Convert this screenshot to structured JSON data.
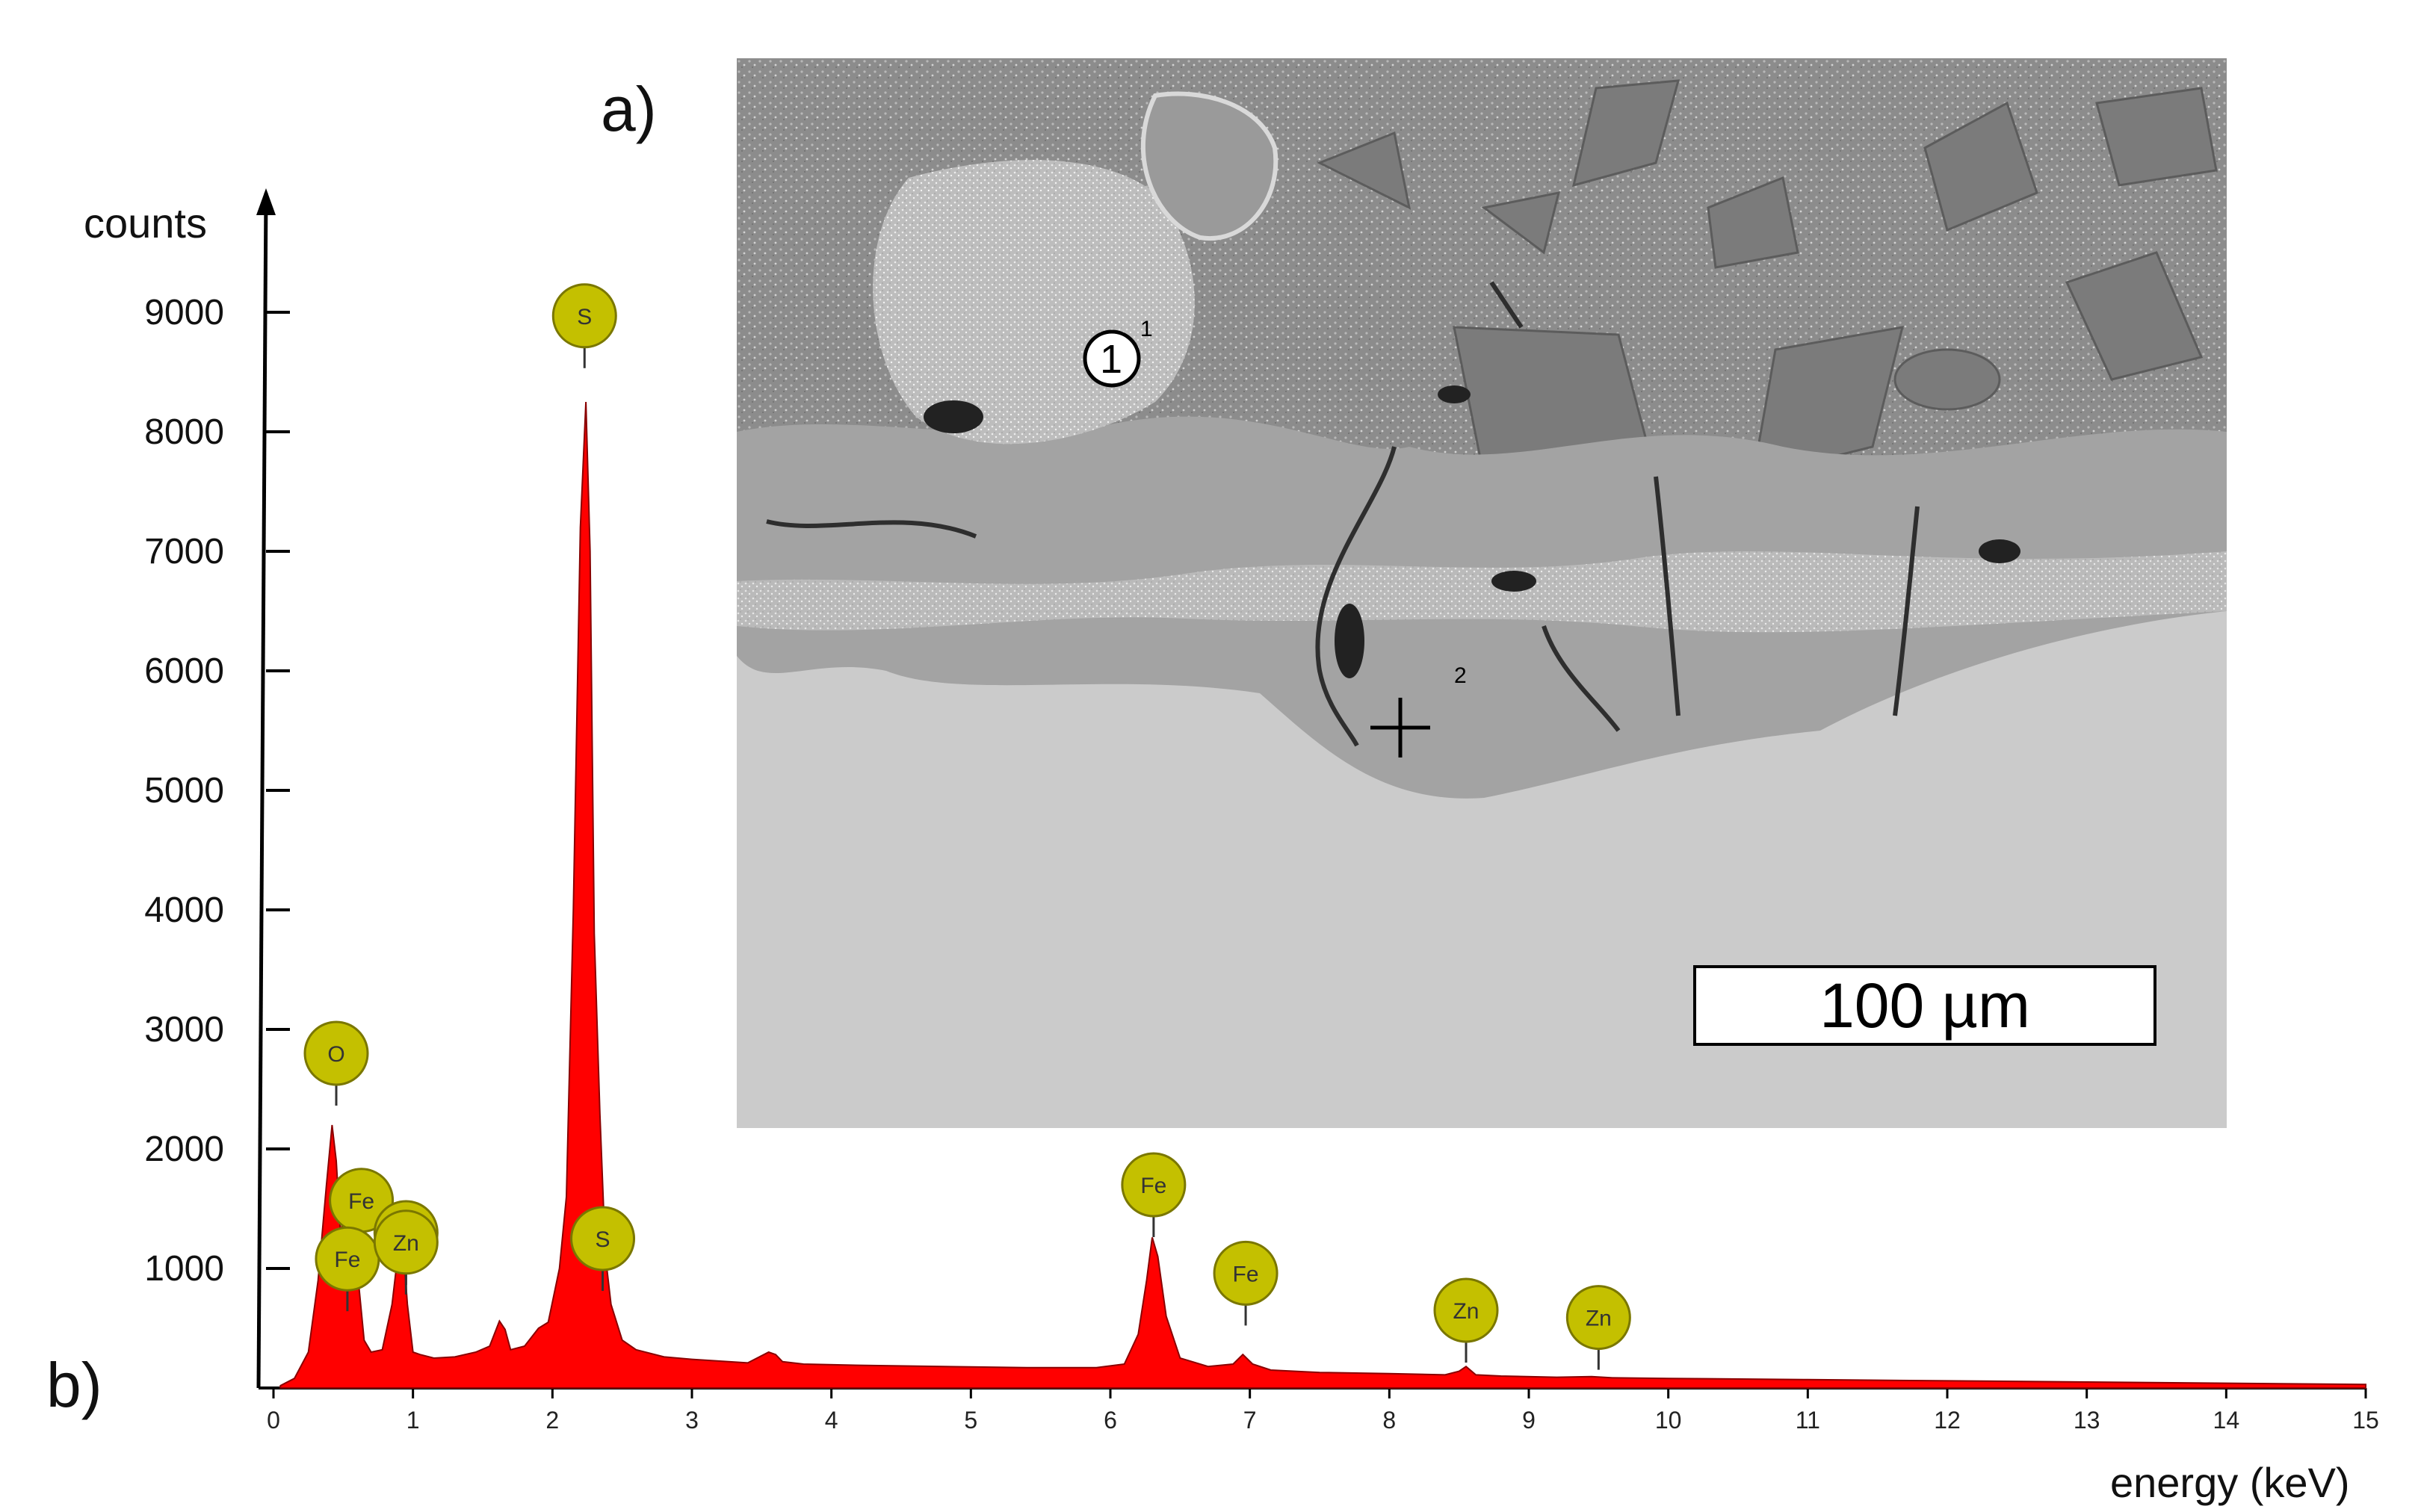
{
  "panels": {
    "a": "a)",
    "b": "b)"
  },
  "sem": {
    "scale_bar": "100 µm",
    "points": [
      {
        "number": "1",
        "superscript": "1",
        "marker": "circle"
      },
      {
        "number": "",
        "superscript": "2",
        "marker": "cross"
      }
    ]
  },
  "chart_data": {
    "type": "line",
    "title": "",
    "xlabel": "energy (keV)",
    "ylabel": "counts",
    "xlim": [
      0,
      15
    ],
    "ylim": [
      0,
      10000
    ],
    "xticks": [
      0,
      1,
      2,
      3,
      4,
      5,
      6,
      7,
      8,
      9,
      10,
      11,
      12,
      13,
      14,
      15
    ],
    "yticks": [
      1000,
      2000,
      3000,
      4000,
      5000,
      6000,
      7000,
      8000,
      9000
    ],
    "fill_color": "#ff0000",
    "marker_color": "#c4c000",
    "series": [
      {
        "x": [
          0.05,
          0.15,
          0.25,
          0.32,
          0.38,
          0.42,
          0.45,
          0.48,
          0.5,
          0.55,
          0.6,
          0.65,
          0.7,
          0.78,
          0.85,
          0.9,
          0.93,
          0.96,
          1.0,
          1.05,
          1.15,
          1.3,
          1.45,
          1.55,
          1.62,
          1.66,
          1.7,
          1.8,
          1.9,
          1.97,
          2.05,
          2.1,
          2.15,
          2.2,
          2.24,
          2.27,
          2.3,
          2.34,
          2.38,
          2.42,
          2.5,
          2.6,
          2.8,
          3.0,
          3.4,
          3.55,
          3.6,
          3.65,
          3.8,
          4.2,
          4.8,
          5.4,
          5.9,
          6.1,
          6.2,
          6.26,
          6.3,
          6.34,
          6.4,
          6.5,
          6.7,
          6.88,
          6.95,
          7.02,
          7.15,
          7.5,
          8.0,
          8.4,
          8.5,
          8.55,
          8.62,
          8.8,
          9.2,
          9.45,
          9.6,
          10.0,
          11.0,
          12.0,
          13.0,
          14.0,
          15.0
        ],
        "y": [
          20,
          80,
          300,
          900,
          1700,
          2200,
          1900,
          1300,
          1400,
          1300,
          1000,
          400,
          300,
          320,
          700,
          1200,
          1180,
          700,
          300,
          280,
          250,
          260,
          300,
          350,
          560,
          490,
          320,
          350,
          500,
          550,
          1000,
          1600,
          4000,
          7200,
          8250,
          7000,
          3800,
          2300,
          1100,
          700,
          400,
          320,
          260,
          240,
          210,
          300,
          280,
          220,
          200,
          190,
          180,
          170,
          170,
          200,
          450,
          900,
          1260,
          1100,
          600,
          250,
          180,
          200,
          280,
          200,
          150,
          130,
          120,
          110,
          140,
          180,
          110,
          100,
          90,
          95,
          85,
          80,
          70,
          60,
          50,
          40,
          30
        ]
      }
    ],
    "peak_labels": [
      {
        "label": "O",
        "x": 0.45,
        "y": 2800
      },
      {
        "label": "Fe",
        "x": 0.63,
        "y": 1570
      },
      {
        "label": "Zn",
        "x": 0.95,
        "y": 1300
      },
      {
        "label": "Fe",
        "x": 0.53,
        "y": 1080
      },
      {
        "label": "Zn",
        "x": 0.95,
        "y": 1220
      },
      {
        "label": "S",
        "x": 2.23,
        "y": 8970
      },
      {
        "label": "S",
        "x": 2.36,
        "y": 1250
      },
      {
        "label": "Fe",
        "x": 6.31,
        "y": 1700
      },
      {
        "label": "Fe",
        "x": 6.97,
        "y": 960
      },
      {
        "label": "Zn",
        "x": 8.55,
        "y": 650
      },
      {
        "label": "Zn",
        "x": 9.5,
        "y": 590
      }
    ]
  }
}
